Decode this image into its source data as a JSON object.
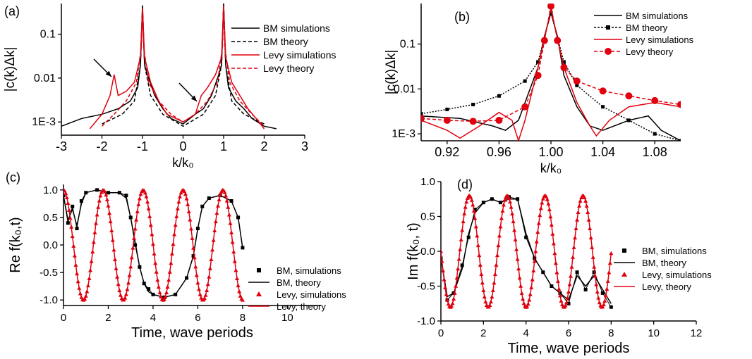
{
  "figure": {
    "colors": {
      "bm": "#000000",
      "levy": "#e0000e"
    }
  },
  "chart_data": [
    {
      "panel": "(a)",
      "type": "line",
      "xlabel": "k/k₀",
      "ylabel": "|c(k)Δk|",
      "x_ticks": [
        "-3",
        "-2",
        "-1",
        "0",
        "1",
        "2",
        "3"
      ],
      "y_ticks": [
        "1E-3",
        "0.01",
        "0.1"
      ],
      "xlim": [
        -3,
        3
      ],
      "ylim": [
        0.0005,
        0.5
      ],
      "yscale": "log",
      "legend": "top-right",
      "series": [
        {
          "name": "BM simulations",
          "style": "solid",
          "color": "#000000",
          "x": [
            -3.0,
            -2.5,
            -2.0,
            -1.6,
            -1.3,
            -1.12,
            -1.05,
            -1.0,
            -0.95,
            -0.88,
            -0.7,
            -0.5,
            -0.3,
            0.0,
            0.3,
            0.5,
            0.7,
            0.88,
            0.95,
            1.0,
            1.05,
            1.12,
            1.3,
            1.5,
            1.7,
            2.0,
            2.3
          ],
          "y": [
            0.0008,
            0.0012,
            0.0015,
            0.002,
            0.003,
            0.006,
            0.02,
            0.45,
            0.02,
            0.012,
            0.004,
            0.002,
            0.0012,
            0.0009,
            0.0015,
            0.002,
            0.004,
            0.012,
            0.02,
            0.5,
            0.02,
            0.006,
            0.003,
            0.002,
            0.0012,
            0.0008,
            0.0007
          ]
        },
        {
          "name": "BM theory",
          "style": "dashed",
          "color": "#000000",
          "x": [
            -2.0,
            -1.5,
            -1.2,
            -1.05,
            -1.0,
            -0.95,
            -0.8,
            -0.5,
            0.0,
            0.5,
            0.8,
            0.95,
            1.0,
            1.05,
            1.2,
            1.5,
            2.0
          ],
          "y": [
            0.0009,
            0.0015,
            0.003,
            0.02,
            0.45,
            0.02,
            0.004,
            0.0015,
            0.0008,
            0.0015,
            0.004,
            0.02,
            0.5,
            0.02,
            0.003,
            0.0015,
            0.0009
          ]
        },
        {
          "name": "Levy simulations",
          "style": "solid",
          "color": "#e0000e",
          "x": [
            -2.3,
            -2.0,
            -1.8,
            -1.7,
            -1.6,
            -1.4,
            -1.2,
            -1.05,
            -1.0,
            -0.95,
            -0.8,
            -0.6,
            -0.4,
            0.0,
            0.3,
            0.45,
            0.6,
            0.8,
            0.95,
            1.0,
            1.05,
            1.2,
            1.4,
            1.6,
            1.8,
            2.0
          ],
          "y": [
            0.0007,
            0.0015,
            0.004,
            0.012,
            0.004,
            0.005,
            0.008,
            0.03,
            0.4,
            0.03,
            0.008,
            0.003,
            0.0015,
            0.001,
            0.0015,
            0.004,
            0.006,
            0.012,
            0.03,
            0.45,
            0.03,
            0.008,
            0.004,
            0.002,
            0.0012,
            0.0007
          ]
        },
        {
          "name": "Levy theory",
          "style": "dashed",
          "color": "#e0000e",
          "x": [
            -2.0,
            -1.7,
            -1.4,
            -1.15,
            -1.03,
            -1.0,
            -0.97,
            -0.85,
            -0.6,
            -0.3,
            0.0,
            0.3,
            0.6,
            0.85,
            0.97,
            1.0,
            1.03,
            1.15,
            1.4,
            1.7,
            2.0
          ],
          "y": [
            0.0008,
            0.0015,
            0.003,
            0.008,
            0.05,
            0.4,
            0.05,
            0.008,
            0.003,
            0.0015,
            0.001,
            0.0015,
            0.003,
            0.008,
            0.05,
            0.45,
            0.05,
            0.008,
            0.003,
            0.0015,
            0.0008
          ]
        }
      ],
      "annotations": [
        "arrow toward red peak near k/k₀ = -1.7",
        "arrow toward red peak near k/k₀ = 0.45"
      ]
    },
    {
      "panel": "(b)",
      "type": "line",
      "xlabel": "k/k₀",
      "ylabel": "|c(k)Δk|",
      "x_ticks": [
        "0.92",
        "0.96",
        "1.00",
        "1.04",
        "1.08"
      ],
      "y_ticks": [
        "1E-3",
        "0.01",
        "0.1"
      ],
      "xlim": [
        0.9,
        1.1
      ],
      "ylim": [
        0.0007,
        0.8
      ],
      "yscale": "log",
      "legend": "top-right",
      "series": [
        {
          "name": "BM simulations",
          "style": "solid",
          "color": "#000000",
          "x": [
            0.9,
            0.93,
            0.955,
            0.965,
            0.975,
            0.99,
            0.995,
            1.0,
            1.005,
            1.01,
            1.02,
            1.03,
            1.04,
            1.06,
            1.075,
            1.085,
            1.1
          ],
          "y": [
            0.0025,
            0.0022,
            0.0015,
            0.0012,
            0.002,
            0.03,
            0.15,
            0.5,
            0.15,
            0.02,
            0.004,
            0.0015,
            0.0012,
            0.002,
            0.0025,
            0.0012,
            0.0007
          ]
        },
        {
          "name": "BM theory",
          "style": "dotted-squares",
          "color": "#000000",
          "x": [
            0.9,
            0.92,
            0.94,
            0.96,
            0.98,
            0.99,
            1.0,
            1.01,
            1.02,
            1.04,
            1.06,
            1.08,
            1.1
          ],
          "y": [
            0.0028,
            0.0035,
            0.0045,
            0.007,
            0.015,
            0.04,
            0.5,
            0.04,
            0.012,
            0.004,
            0.002,
            0.001,
            0.0007
          ]
        },
        {
          "name": "Levy simulations",
          "style": "solid",
          "color": "#e0000e",
          "x": [
            0.9,
            0.92,
            0.93,
            0.945,
            0.96,
            0.97,
            0.975,
            0.98,
            0.99,
            1.0,
            1.01,
            1.02,
            1.03,
            1.035,
            1.045,
            1.06,
            1.08,
            1.1
          ],
          "y": [
            0.002,
            0.0012,
            0.0008,
            0.0015,
            0.003,
            0.002,
            0.0007,
            0.002,
            0.03,
            0.6,
            0.03,
            0.005,
            0.0015,
            0.0009,
            0.002,
            0.004,
            0.005,
            0.004
          ]
        },
        {
          "name": "Levy theory",
          "style": "dashed-circles",
          "color": "#e0000e",
          "x": [
            0.9,
            0.92,
            0.94,
            0.96,
            0.98,
            0.99,
            0.995,
            1.0,
            1.005,
            1.01,
            1.02,
            1.04,
            1.06,
            1.08,
            1.1
          ],
          "y": [
            0.0022,
            0.002,
            0.0019,
            0.002,
            0.004,
            0.02,
            0.12,
            0.7,
            0.12,
            0.03,
            0.015,
            0.009,
            0.007,
            0.0055,
            0.0045
          ]
        }
      ]
    },
    {
      "panel": "(c)",
      "type": "line",
      "xlabel": "Time, wave periods",
      "ylabel": "Re f(k₀,t)",
      "x_ticks": [
        "0",
        "2",
        "4",
        "6",
        "8",
        "10"
      ],
      "y_ticks": [
        "-1.0",
        "-0.5",
        "0.0",
        "0.5",
        "1.0"
      ],
      "xlim": [
        0,
        11.5
      ],
      "ylim": [
        -1.1,
        1.1
      ],
      "legend": "bottom-right",
      "series": [
        {
          "name": "BM, simulations",
          "style": "squares",
          "color": "#000000",
          "x": [
            0.0,
            0.2,
            0.4,
            0.6,
            0.8,
            1.0,
            1.5,
            2.0,
            2.5,
            2.8,
            3.0,
            3.2,
            3.4,
            3.6,
            3.8,
            4.0,
            4.5,
            5.0,
            5.5,
            5.8,
            6.0,
            6.2,
            6.5,
            7.0,
            7.5,
            7.8,
            8.0
          ],
          "y": [
            0.9,
            0.4,
            0.7,
            0.3,
            0.8,
            0.95,
            1.0,
            0.95,
            0.95,
            0.9,
            0.5,
            0.0,
            -0.4,
            -0.7,
            -0.8,
            -0.9,
            -0.95,
            -0.9,
            -0.6,
            -0.2,
            0.3,
            0.7,
            0.85,
            0.9,
            0.8,
            0.5,
            -0.05
          ]
        },
        {
          "name": "BM, theory",
          "style": "solid",
          "color": "#000000",
          "x": [
            0.0,
            0.2,
            0.4,
            0.6,
            0.8,
            1.0,
            1.5,
            2.0,
            2.5,
            2.8,
            3.0,
            3.2,
            3.4,
            3.6,
            3.8,
            4.0,
            4.5,
            5.0,
            5.5,
            5.8,
            6.0,
            6.2,
            6.5,
            7.0,
            7.5,
            7.8,
            8.0
          ],
          "y": [
            0.9,
            0.45,
            0.65,
            0.35,
            0.75,
            0.95,
            1.0,
            0.95,
            0.95,
            0.85,
            0.5,
            0.05,
            -0.4,
            -0.7,
            -0.85,
            -0.9,
            -0.95,
            -0.9,
            -0.6,
            -0.2,
            0.3,
            0.7,
            0.85,
            0.9,
            0.8,
            0.5,
            -0.05
          ]
        },
        {
          "name": "Levy, simulations",
          "style": "triangles",
          "color": "#e0000e",
          "generated": "cos-wave",
          "period": 1.78,
          "tmax": 8.0
        },
        {
          "name": "Levy, theory",
          "style": "solid",
          "color": "#e0000e",
          "generated": "cos-wave",
          "period": 1.78,
          "tmax": 8.0
        }
      ]
    },
    {
      "panel": "(d)",
      "type": "line",
      "xlabel": "Time, wave periods",
      "ylabel": "Im f(k₀, t)",
      "x_ticks": [
        "0",
        "2",
        "4",
        "6",
        "8",
        "10",
        "12"
      ],
      "y_ticks": [
        "-1.0",
        "-0.5",
        "0.0",
        "0.5",
        "1.0"
      ],
      "xlim": [
        0,
        12
      ],
      "ylim": [
        -1.0,
        1.0
      ],
      "legend": "right",
      "series": [
        {
          "name": "BM, simulations",
          "style": "squares",
          "color": "#000000",
          "x": [
            0.0,
            0.3,
            0.6,
            1.0,
            1.3,
            1.6,
            2.0,
            2.4,
            2.8,
            3.2,
            3.6,
            4.0,
            4.4,
            4.8,
            5.2,
            5.6,
            6.0,
            6.4,
            6.8,
            7.2,
            7.6,
            8.0
          ],
          "y": [
            -0.1,
            -0.7,
            -0.6,
            -0.2,
            0.2,
            0.6,
            0.7,
            0.75,
            0.7,
            0.78,
            0.75,
            0.2,
            -0.1,
            -0.3,
            -0.5,
            -0.6,
            -0.75,
            -0.3,
            -0.55,
            -0.3,
            -0.6,
            -0.8
          ]
        },
        {
          "name": "BM, theory",
          "style": "solid",
          "color": "#000000",
          "x": [
            0.0,
            0.3,
            0.6,
            1.0,
            1.3,
            1.6,
            2.0,
            2.4,
            2.8,
            3.2,
            3.6,
            4.0,
            4.4,
            4.8,
            5.2,
            5.6,
            6.0,
            6.4,
            6.8,
            7.2,
            7.6,
            8.0
          ],
          "y": [
            -0.1,
            -0.65,
            -0.6,
            -0.25,
            0.25,
            0.55,
            0.7,
            0.75,
            0.7,
            0.75,
            0.75,
            0.25,
            -0.1,
            -0.3,
            -0.5,
            -0.6,
            -0.7,
            -0.35,
            -0.5,
            -0.35,
            -0.55,
            -0.75
          ]
        },
        {
          "name": "Levy, simulations",
          "style": "triangles",
          "color": "#e0000e",
          "generated": "sin-wave",
          "period": 1.78,
          "tmax": 8.0
        },
        {
          "name": "Levy, theory",
          "style": "solid",
          "color": "#e0000e",
          "generated": "sin-wave",
          "period": 1.78,
          "tmax": 8.0
        }
      ]
    }
  ]
}
